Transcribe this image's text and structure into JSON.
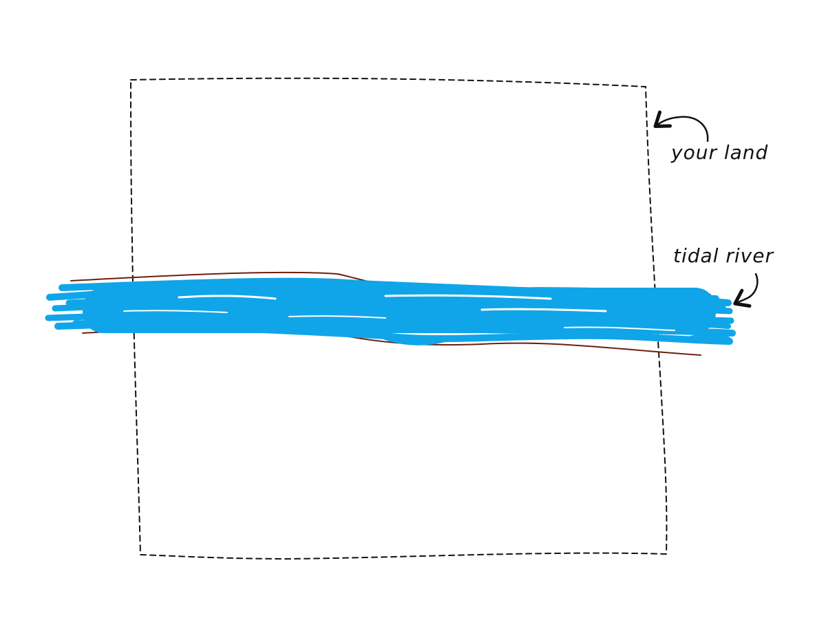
{
  "labels": {
    "your_land": "your land",
    "tidal_river": "tidal river"
  },
  "colors": {
    "river_water": "#10a5e8",
    "river_bank": "#6b1f10",
    "boundary": "#111111",
    "annotation": "#111111",
    "background": "#ffffff"
  },
  "icons": {
    "your_land_pointer": "curved-arrow-icon",
    "tidal_river_pointer": "curved-arrow-icon"
  }
}
